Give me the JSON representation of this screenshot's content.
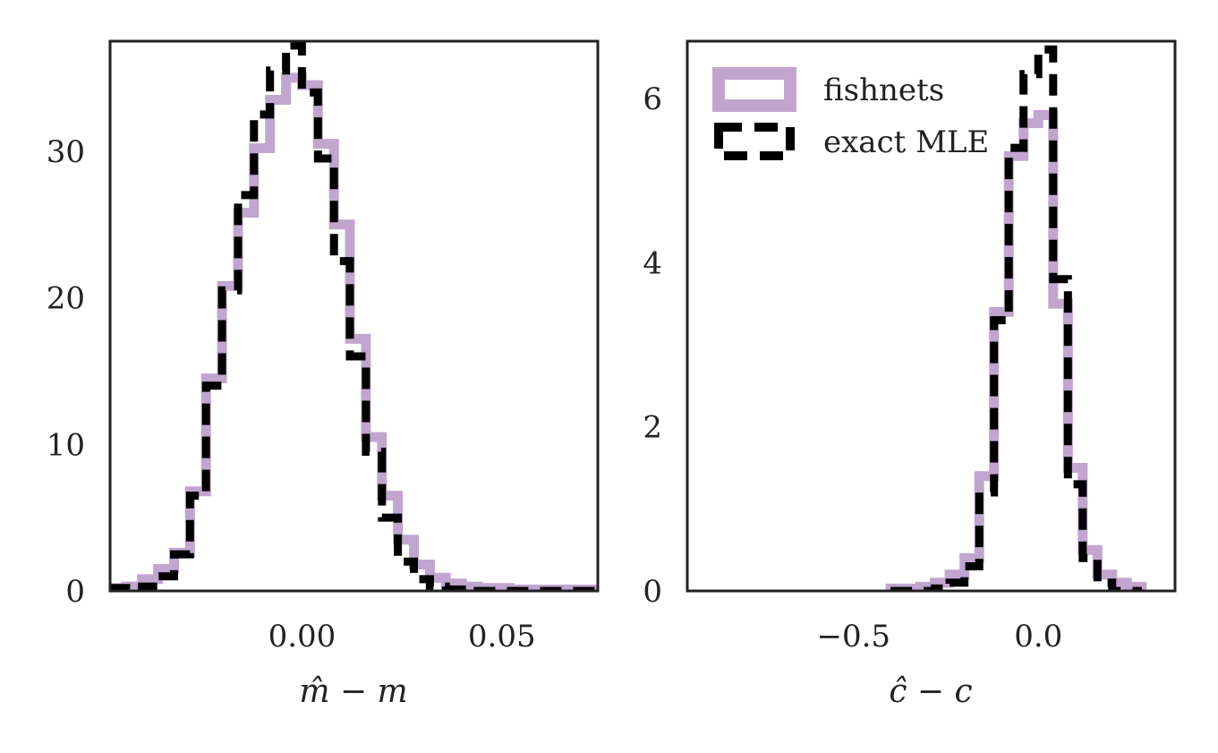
{
  "colors": {
    "fishnets": "#c2a5cf",
    "exact_mle": "#000000",
    "axes": "#222222",
    "background": "#ffffff"
  },
  "legend": {
    "items": [
      {
        "label": "fishnets",
        "style": "solid-thick",
        "color": "#c2a5cf"
      },
      {
        "label": "exact MLE",
        "style": "dashed",
        "color": "#000000"
      }
    ],
    "placement": "upper-left (right panel)"
  },
  "chart_data": [
    {
      "type": "step-histogram",
      "xlabel": "m̂ − m",
      "ylabel": "",
      "xlim": [
        -0.048,
        0.074
      ],
      "ylim": [
        0,
        37.5
      ],
      "grid": false,
      "xticks": [
        {
          "value": 0.0,
          "label": "0.00"
        },
        {
          "value": 0.05,
          "label": "0.05"
        }
      ],
      "yticks": [
        {
          "value": 0,
          "label": "0"
        },
        {
          "value": 10,
          "label": "10"
        },
        {
          "value": 20,
          "label": "20"
        },
        {
          "value": 30,
          "label": "30"
        }
      ],
      "bin_edges": [
        -0.048,
        -0.044,
        -0.04,
        -0.036,
        -0.032,
        -0.028,
        -0.024,
        -0.02,
        -0.016,
        -0.012,
        -0.008,
        -0.004,
        0.0,
        0.004,
        0.008,
        0.012,
        0.016,
        0.02,
        0.024,
        0.028,
        0.032,
        0.036,
        0.04,
        0.044,
        0.048,
        0.052,
        0.056,
        0.06,
        0.064,
        0.068,
        0.072,
        0.074
      ],
      "series": [
        {
          "name": "fishnets",
          "values": [
            0.2,
            0.3,
            0.8,
            1.5,
            2.6,
            6.8,
            14.5,
            20.8,
            25.8,
            30.2,
            33.5,
            35.0,
            34.5,
            30.5,
            25.0,
            17.2,
            10.5,
            6.5,
            3.5,
            1.8,
            0.9,
            0.5,
            0.3,
            0.2,
            0.2,
            0.1,
            0.1,
            0.1,
            0.1,
            0.1,
            0.1
          ]
        },
        {
          "name": "exact MLE",
          "values": [
            0.2,
            0.1,
            0.3,
            1.0,
            2.5,
            6.5,
            14.0,
            20.5,
            27.0,
            32.5,
            35.5,
            37.2,
            34.0,
            29.5,
            22.5,
            16.0,
            9.5,
            5.0,
            2.0,
            0.8,
            0.3,
            0.1,
            0.0,
            0.0,
            0.0,
            0.0,
            0.0,
            0.0,
            0.0,
            0.0,
            0.0
          ]
        }
      ]
    },
    {
      "type": "step-histogram",
      "xlabel": "ĉ − c",
      "ylabel": "",
      "xlim": [
        -0.95,
        0.37
      ],
      "ylim": [
        0,
        6.7
      ],
      "grid": false,
      "xticks": [
        {
          "value": -0.5,
          "label": "−0.5"
        },
        {
          "value": 0.0,
          "label": "0.0"
        }
      ],
      "yticks": [
        {
          "value": 0,
          "label": "0"
        },
        {
          "value": 2,
          "label": "2"
        },
        {
          "value": 4,
          "label": "4"
        },
        {
          "value": 6,
          "label": "6"
        }
      ],
      "bin_edges": [
        -0.4,
        -0.36,
        -0.32,
        -0.28,
        -0.24,
        -0.2,
        -0.16,
        -0.12,
        -0.08,
        -0.04,
        0.0,
        0.04,
        0.08,
        0.12,
        0.16,
        0.2,
        0.24,
        0.28
      ],
      "series": [
        {
          "name": "fishnets",
          "values": [
            0.03,
            0.03,
            0.05,
            0.1,
            0.2,
            0.4,
            1.4,
            3.4,
            5.3,
            5.7,
            5.8,
            3.5,
            1.5,
            0.5,
            0.2,
            0.1,
            0.05
          ]
        },
        {
          "name": "exact MLE",
          "values": [
            0.0,
            0.0,
            0.0,
            0.03,
            0.1,
            0.3,
            1.2,
            3.3,
            5.4,
            6.3,
            6.6,
            3.8,
            1.3,
            0.4,
            0.1,
            0.0,
            0.0
          ]
        }
      ]
    }
  ]
}
